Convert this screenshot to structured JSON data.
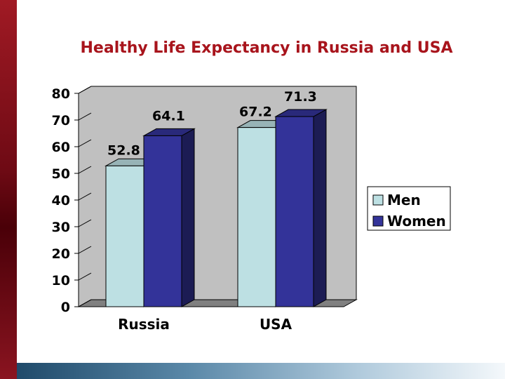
{
  "chart_data": {
    "type": "bar",
    "title": "Healthy Life Expectancy in Russia and USA",
    "categories": [
      "Russia",
      "USA"
    ],
    "series": [
      {
        "name": "Men",
        "values": [
          52.8,
          67.2
        ],
        "color": "#bde0e3"
      },
      {
        "name": "Women",
        "values": [
          64.1,
          71.3
        ],
        "color": "#333399"
      }
    ],
    "ylim": [
      0,
      80
    ],
    "yticks": [
      0,
      10,
      20,
      30,
      40,
      50,
      60,
      70,
      80
    ],
    "grid": false,
    "legend": "right",
    "style": "3d"
  },
  "colors": {
    "title": "#a8141c",
    "wall": "#c0c0c0",
    "floor": "#808080"
  }
}
